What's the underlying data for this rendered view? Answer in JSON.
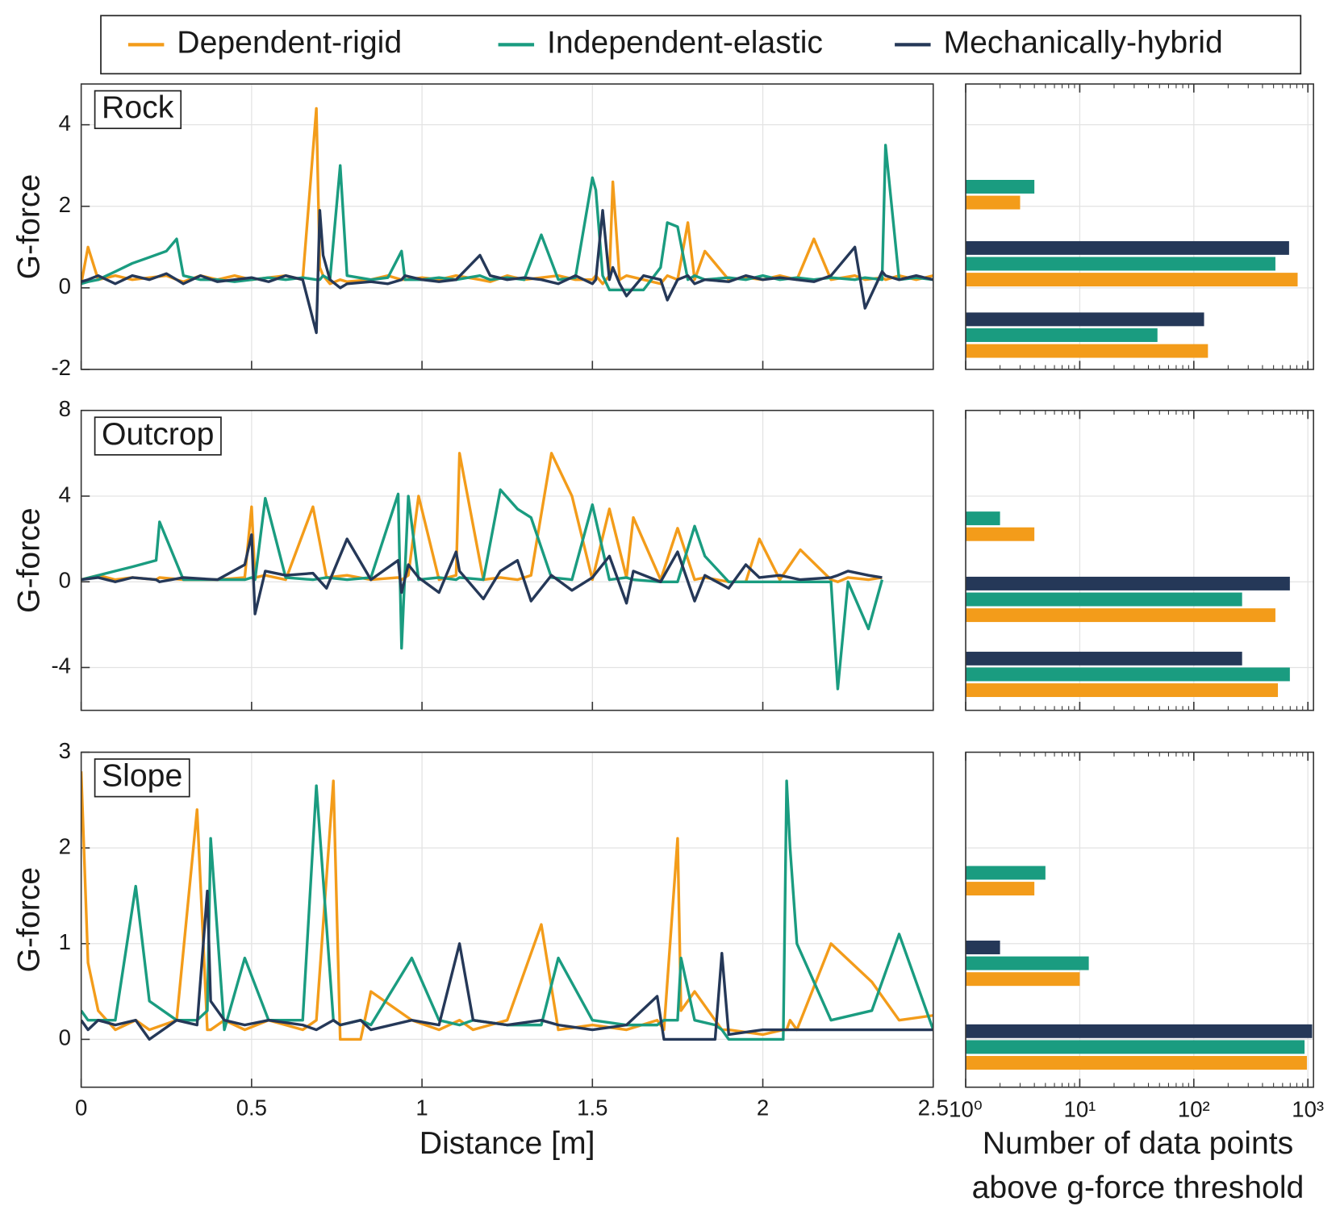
{
  "chart_data": [
    {
      "type": "line",
      "title": "Rock",
      "ylabel": "G-force",
      "legend": "top",
      "xlim": [
        0,
        2.5
      ],
      "xticks": [
        0,
        0.5,
        1,
        1.5,
        2,
        2.5
      ],
      "ylim": [
        -2,
        5
      ],
      "yticks": [
        -2,
        0,
        2,
        4
      ],
      "grid": true,
      "x": [
        0,
        0.02,
        0.05,
        0.1,
        0.15,
        0.2,
        0.25,
        0.28,
        0.3,
        0.35,
        0.4,
        0.45,
        0.5,
        0.55,
        0.6,
        0.65,
        0.69,
        0.7,
        0.71,
        0.73,
        0.76,
        0.78,
        0.85,
        0.9,
        0.94,
        0.95,
        1.0,
        1.05,
        1.1,
        1.17,
        1.2,
        1.25,
        1.3,
        1.35,
        1.4,
        1.45,
        1.5,
        1.51,
        1.53,
        1.55,
        1.56,
        1.58,
        1.6,
        1.65,
        1.7,
        1.72,
        1.75,
        1.78,
        1.8,
        1.83,
        1.9,
        1.95,
        2.0,
        2.05,
        2.1,
        2.15,
        2.2,
        2.27,
        2.3,
        2.35,
        2.36,
        2.4,
        2.45,
        2.5
      ],
      "series": [
        {
          "name": "Dependent-rigid",
          "color": "#f39c1a",
          "values": [
            0.1,
            1.0,
            0.2,
            0.3,
            0.2,
            0.25,
            0.3,
            0.2,
            0.15,
            0.3,
            0.2,
            0.3,
            0.2,
            0.25,
            0.3,
            0.2,
            4.4,
            0.5,
            0.3,
            0.1,
            0.2,
            0.15,
            0.2,
            0.3,
            0.2,
            0.2,
            0.25,
            0.2,
            0.3,
            0.2,
            0.15,
            0.3,
            0.2,
            0.25,
            0.3,
            0.2,
            0.2,
            0.3,
            0.1,
            0.3,
            2.6,
            0.2,
            0.3,
            0.2,
            0.1,
            0.3,
            0.2,
            1.6,
            0.2,
            0.9,
            0.2,
            0.25,
            0.2,
            0.3,
            0.2,
            1.2,
            0.2,
            0.3,
            0.2,
            0.25,
            0.2,
            0.3,
            0.2,
            0.3
          ]
        },
        {
          "name": "Independent-elastic",
          "color": "#1a9c80",
          "values": [
            0.1,
            0.15,
            0.2,
            0.4,
            0.6,
            0.75,
            0.9,
            1.2,
            0.3,
            0.2,
            0.2,
            0.15,
            0.2,
            0.25,
            0.2,
            0.25,
            0.2,
            0.2,
            0.3,
            0.2,
            3.0,
            0.3,
            0.2,
            0.25,
            0.9,
            0.2,
            0.2,
            0.25,
            0.2,
            0.3,
            0.2,
            0.25,
            0.2,
            1.3,
            0.2,
            0.25,
            2.7,
            2.4,
            0.3,
            -0.05,
            -0.05,
            -0.05,
            -0.05,
            -0.05,
            0.5,
            1.6,
            1.5,
            0.2,
            0.3,
            0.2,
            0.25,
            0.2,
            0.3,
            0.2,
            0.25,
            0.2,
            0.25,
            0.2,
            0.25,
            0.2,
            3.5,
            0.2,
            0.25,
            0.2
          ]
        },
        {
          "name": "Mechanically-hybrid",
          "color": "#253858",
          "values": [
            0.15,
            0.2,
            0.3,
            0.1,
            0.3,
            0.2,
            0.35,
            0.2,
            0.1,
            0.3,
            0.15,
            0.2,
            0.25,
            0.15,
            0.3,
            0.2,
            -1.1,
            1.9,
            0.8,
            0.2,
            0.0,
            0.1,
            0.15,
            0.1,
            0.2,
            0.3,
            0.2,
            0.15,
            0.2,
            0.8,
            0.3,
            0.2,
            0.25,
            0.2,
            0.1,
            0.3,
            0.1,
            0.2,
            1.9,
            0.2,
            0.5,
            0.1,
            -0.2,
            0.3,
            0.2,
            -0.3,
            0.2,
            0.3,
            0.1,
            0.2,
            0.15,
            0.3,
            0.2,
            0.25,
            0.2,
            0.15,
            0.3,
            1.0,
            -0.5,
            0.4,
            0.3,
            0.2,
            0.3,
            0.2
          ]
        }
      ]
    },
    {
      "type": "line",
      "title": "Outcrop",
      "ylabel": "G-force",
      "xlim": [
        0,
        2.5
      ],
      "xticks": [
        0,
        0.5,
        1,
        1.5,
        2,
        2.5
      ],
      "ylim": [
        -6,
        8
      ],
      "yticks": [
        -4,
        0,
        4,
        8
      ],
      "grid": true,
      "x": [
        0,
        0.05,
        0.1,
        0.15,
        0.22,
        0.23,
        0.3,
        0.4,
        0.48,
        0.5,
        0.51,
        0.54,
        0.6,
        0.68,
        0.72,
        0.78,
        0.85,
        0.93,
        0.94,
        0.96,
        0.99,
        1.05,
        1.1,
        1.11,
        1.18,
        1.23,
        1.28,
        1.32,
        1.38,
        1.44,
        1.5,
        1.55,
        1.6,
        1.62,
        1.7,
        1.75,
        1.8,
        1.83,
        1.9,
        1.95,
        1.99,
        2.05,
        2.11,
        2.2,
        2.22,
        2.25,
        2.31,
        2.35
      ],
      "series": [
        {
          "name": "Dependent-rigid",
          "color": "#f39c1a",
          "values": [
            0.1,
            0.3,
            0.1,
            0.2,
            0.1,
            0.2,
            0.1,
            0.1,
            0.2,
            3.5,
            0.2,
            0.3,
            0.1,
            3.5,
            0.2,
            0.3,
            0.1,
            0.2,
            0.1,
            0.3,
            4.0,
            0.1,
            0.3,
            6.0,
            0.1,
            0.2,
            0.1,
            0.3,
            6.0,
            4.0,
            0.1,
            3.4,
            0.2,
            3.0,
            0.1,
            2.5,
            0.1,
            0.2,
            0.0,
            0.0,
            2.0,
            0.1,
            1.5,
            0.1,
            0.0,
            0.2,
            0.1,
            0.2
          ]
        },
        {
          "name": "Independent-elastic",
          "color": "#1a9c80",
          "values": [
            0.1,
            0.3,
            0.5,
            0.7,
            1.0,
            2.8,
            0.1,
            0.1,
            0.1,
            0.2,
            0.1,
            3.9,
            0.2,
            0.1,
            0.2,
            0.1,
            0.2,
            4.1,
            -3.1,
            4.0,
            0.1,
            0.2,
            0.1,
            0.2,
            0.1,
            4.3,
            3.4,
            3.0,
            0.2,
            0.1,
            3.6,
            0.1,
            0.2,
            0.1,
            0.0,
            0.0,
            2.6,
            1.2,
            0.0,
            0.0,
            0.0,
            0.0,
            0.0,
            0.0,
            -5.0,
            0.0,
            -2.2,
            0.1
          ]
        },
        {
          "name": "Mechanically-hybrid",
          "color": "#253858",
          "values": [
            0.1,
            0.2,
            0.0,
            0.2,
            0.1,
            0.0,
            0.2,
            0.1,
            0.8,
            2.2,
            -1.5,
            0.5,
            0.3,
            0.4,
            -0.3,
            2.0,
            0.1,
            1.0,
            -0.5,
            0.8,
            0.2,
            -0.5,
            1.4,
            0.5,
            -0.8,
            0.5,
            1.0,
            -0.9,
            0.3,
            -0.4,
            0.2,
            1.2,
            -1.0,
            0.5,
            0.0,
            1.4,
            -0.9,
            0.3,
            -0.3,
            0.8,
            0.2,
            0.3,
            0.1,
            0.2,
            0.3,
            0.5,
            0.3,
            0.2
          ]
        }
      ]
    },
    {
      "type": "line",
      "title": "Slope",
      "ylabel": "G-force",
      "xlabel": "Distance [m]",
      "xlim": [
        0,
        2.5
      ],
      "xticks": [
        0,
        0.5,
        1,
        1.5,
        2,
        2.5
      ],
      "ylim": [
        -0.5,
        3
      ],
      "yticks": [
        0,
        1,
        2,
        3
      ],
      "grid": true,
      "x": [
        0,
        0.02,
        0.05,
        0.1,
        0.16,
        0.2,
        0.28,
        0.34,
        0.37,
        0.38,
        0.42,
        0.48,
        0.55,
        0.65,
        0.69,
        0.74,
        0.76,
        0.82,
        0.85,
        0.97,
        1.05,
        1.11,
        1.15,
        1.25,
        1.35,
        1.4,
        1.5,
        1.6,
        1.69,
        1.71,
        1.75,
        1.76,
        1.8,
        1.86,
        1.88,
        1.9,
        2.0,
        2.06,
        2.07,
        2.08,
        2.1,
        2.2,
        2.32,
        2.4,
        2.5
      ],
      "series": [
        {
          "name": "Dependent-rigid",
          "color": "#f39c1a",
          "values": [
            2.8,
            0.8,
            0.3,
            0.1,
            0.2,
            0.1,
            0.2,
            2.4,
            0.1,
            0.1,
            0.2,
            0.1,
            0.2,
            0.1,
            0.2,
            2.7,
            0.0,
            0.0,
            0.5,
            0.2,
            0.1,
            0.2,
            0.1,
            0.2,
            1.2,
            0.1,
            0.15,
            0.1,
            0.2,
            0.1,
            2.1,
            0.3,
            0.5,
            0.2,
            0.1,
            0.1,
            0.05,
            0.1,
            0.1,
            0.2,
            0.1,
            1.0,
            0.6,
            0.2,
            0.25
          ]
        },
        {
          "name": "Independent-elastic",
          "color": "#1a9c80",
          "values": [
            0.3,
            0.2,
            0.2,
            0.2,
            1.6,
            0.4,
            0.2,
            0.2,
            0.3,
            2.1,
            0.1,
            0.85,
            0.2,
            0.2,
            2.65,
            0.2,
            0.15,
            0.2,
            0.15,
            0.85,
            0.2,
            0.15,
            0.2,
            0.15,
            0.15,
            0.85,
            0.2,
            0.15,
            0.15,
            0.2,
            0.2,
            0.85,
            0.2,
            0.15,
            0.1,
            0.0,
            0.0,
            0.0,
            2.7,
            2.0,
            1.0,
            0.2,
            0.3,
            1.1,
            0.1
          ]
        },
        {
          "name": "Mechanically-hybrid",
          "color": "#253858",
          "values": [
            0.2,
            0.1,
            0.2,
            0.15,
            0.2,
            0.0,
            0.2,
            0.15,
            1.55,
            0.4,
            0.2,
            0.15,
            0.2,
            0.15,
            0.1,
            0.2,
            0.15,
            0.2,
            0.1,
            0.2,
            0.15,
            1.0,
            0.2,
            0.15,
            0.2,
            0.15,
            0.1,
            0.15,
            0.45,
            0.0,
            0.0,
            0.0,
            0.0,
            0.0,
            0.9,
            0.05,
            0.1,
            0.1,
            0.1,
            0.1,
            0.1,
            0.1,
            0.1,
            0.1,
            0.1
          ]
        }
      ]
    },
    {
      "type": "barh",
      "xscale": "log",
      "xlim": [
        1,
        1120
      ],
      "xticks": [
        {
          "value": 1,
          "label": "10⁰"
        },
        {
          "value": 10,
          "label": "10¹"
        },
        {
          "value": 100,
          "label": "10²"
        },
        {
          "value": 1000,
          "label": "10³"
        }
      ],
      "grid": true,
      "categories": [
        null,
        null,
        null
      ],
      "series": [
        {
          "name": "Dependent-rigid",
          "color": "#f39c1a",
          "values": [
            3,
            813,
            133
          ]
        },
        {
          "name": "Independent-elastic",
          "color": "#1a9c80",
          "values": [
            4,
            519,
            48
          ]
        },
        {
          "name": "Mechanically-hybrid",
          "color": "#253858",
          "values": [
            null,
            684,
            123
          ]
        }
      ]
    },
    {
      "type": "barh",
      "xscale": "log",
      "xlim": [
        1,
        1120
      ],
      "xticks": [
        {
          "value": 1,
          "label": "10⁰"
        },
        {
          "value": 10,
          "label": "10¹"
        },
        {
          "value": 100,
          "label": "10²"
        },
        {
          "value": 1000,
          "label": "10³"
        }
      ],
      "grid": true,
      "categories": [
        null,
        null,
        null
      ],
      "series": [
        {
          "name": "Dependent-rigid",
          "color": "#f39c1a",
          "values": [
            4,
            519,
            546
          ]
        },
        {
          "name": "Independent-elastic",
          "color": "#1a9c80",
          "values": [
            2,
            265,
            695
          ]
        },
        {
          "name": "Mechanically-hybrid",
          "color": "#253858",
          "values": [
            null,
            695,
            265
          ]
        }
      ]
    },
    {
      "type": "barh",
      "xscale": "log",
      "xlim": [
        1,
        1120
      ],
      "xticks": [
        {
          "value": 1,
          "label": "10⁰"
        },
        {
          "value": 10,
          "label": "10¹"
        },
        {
          "value": 100,
          "label": "10²"
        },
        {
          "value": 1000,
          "label": "10³"
        }
      ],
      "grid": true,
      "xlabel": [
        "Number of data points",
        "above g-force threshold"
      ],
      "categories": [
        null,
        null,
        null
      ],
      "series": [
        {
          "name": "Dependent-rigid",
          "color": "#f39c1a",
          "values": [
            4,
            10,
            980
          ]
        },
        {
          "name": "Independent-elastic",
          "color": "#1a9c80",
          "values": [
            5,
            12,
            935
          ]
        },
        {
          "name": "Mechanically-hybrid",
          "color": "#253858",
          "values": [
            null,
            2,
            1090
          ]
        }
      ]
    }
  ]
}
